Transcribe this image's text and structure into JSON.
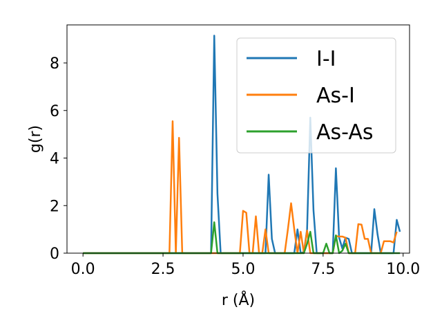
{
  "chart_data": {
    "type": "line",
    "title": "",
    "xlabel": "r (Å)",
    "ylabel": "g(r)",
    "xlim": [
      -0.5,
      10.2
    ],
    "ylim": [
      0,
      9.6
    ],
    "xticks": [
      0.0,
      2.5,
      5.0,
      7.5,
      10.0
    ],
    "xtick_labels": [
      "0.0",
      "2.5",
      "5.0",
      "7.5",
      "10.0"
    ],
    "yticks": [
      0,
      2,
      4,
      6,
      8
    ],
    "ytick_labels": [
      "0",
      "2",
      "4",
      "6",
      "8"
    ],
    "grid": false,
    "legend_position": "top-right",
    "series": [
      {
        "name": "I-I",
        "color": "#1f77b4",
        "points": [
          [
            0,
            0
          ],
          [
            3.9,
            0
          ],
          [
            4.0,
            0
          ],
          [
            4.1,
            9.15
          ],
          [
            4.2,
            2.5
          ],
          [
            4.3,
            0
          ],
          [
            5.7,
            0
          ],
          [
            5.8,
            3.3
          ],
          [
            5.9,
            0.6
          ],
          [
            6.0,
            0
          ],
          [
            6.6,
            0
          ],
          [
            6.7,
            1.0
          ],
          [
            6.8,
            0
          ],
          [
            6.9,
            0.05
          ],
          [
            7.0,
            1.0
          ],
          [
            7.1,
            5.7
          ],
          [
            7.2,
            1.8
          ],
          [
            7.3,
            0
          ],
          [
            7.8,
            0
          ],
          [
            7.9,
            3.57
          ],
          [
            8.0,
            0.65
          ],
          [
            8.1,
            0.2
          ],
          [
            8.2,
            0.65
          ],
          [
            8.3,
            0.6
          ],
          [
            8.4,
            0
          ],
          [
            9.0,
            0
          ],
          [
            9.1,
            1.85
          ],
          [
            9.2,
            0.8
          ],
          [
            9.3,
            0
          ],
          [
            9.7,
            0
          ],
          [
            9.8,
            1.4
          ],
          [
            9.9,
            0.9
          ]
        ]
      },
      {
        "name": "As-I",
        "color": "#ff7f0e",
        "points": [
          [
            0,
            0
          ],
          [
            2.7,
            0
          ],
          [
            2.8,
            5.55
          ],
          [
            2.9,
            0
          ],
          [
            3.0,
            4.85
          ],
          [
            3.1,
            0
          ],
          [
            4.9,
            0
          ],
          [
            5.0,
            1.78
          ],
          [
            5.1,
            1.7
          ],
          [
            5.2,
            0
          ],
          [
            5.3,
            0
          ],
          [
            5.4,
            1.55
          ],
          [
            5.5,
            0
          ],
          [
            5.6,
            0
          ],
          [
            5.7,
            1.0
          ],
          [
            5.8,
            0
          ],
          [
            6.3,
            0
          ],
          [
            6.4,
            1.0
          ],
          [
            6.5,
            2.1
          ],
          [
            6.6,
            1.0
          ],
          [
            6.7,
            0
          ],
          [
            6.8,
            0.9
          ],
          [
            6.9,
            0
          ],
          [
            7.0,
            0.95
          ],
          [
            7.1,
            0
          ],
          [
            7.8,
            0
          ],
          [
            7.9,
            0.72
          ],
          [
            8.0,
            0.7
          ],
          [
            8.1,
            0.7
          ],
          [
            8.2,
            0.65
          ],
          [
            8.3,
            0
          ],
          [
            8.5,
            0
          ],
          [
            8.6,
            1.22
          ],
          [
            8.7,
            1.2
          ],
          [
            8.8,
            0.6
          ],
          [
            8.9,
            0.6
          ],
          [
            9.0,
            0
          ],
          [
            9.3,
            0
          ],
          [
            9.4,
            0.5
          ],
          [
            9.5,
            0.5
          ],
          [
            9.6,
            0.5
          ],
          [
            9.7,
            0.45
          ],
          [
            9.8,
            0.9
          ]
        ]
      },
      {
        "name": "As-As",
        "color": "#2ca02c",
        "points": [
          [
            0,
            0
          ],
          [
            4.0,
            0
          ],
          [
            4.1,
            1.3
          ],
          [
            4.2,
            0
          ],
          [
            6.9,
            0
          ],
          [
            7.0,
            0.4
          ],
          [
            7.1,
            0.9
          ],
          [
            7.2,
            0
          ],
          [
            7.5,
            0
          ],
          [
            7.6,
            0.4
          ],
          [
            7.7,
            0
          ],
          [
            7.8,
            0
          ],
          [
            7.9,
            0.75
          ],
          [
            8.0,
            0
          ],
          [
            8.1,
            0.1
          ],
          [
            8.2,
            0.4
          ],
          [
            8.3,
            0
          ],
          [
            9.9,
            0
          ]
        ]
      }
    ]
  }
}
